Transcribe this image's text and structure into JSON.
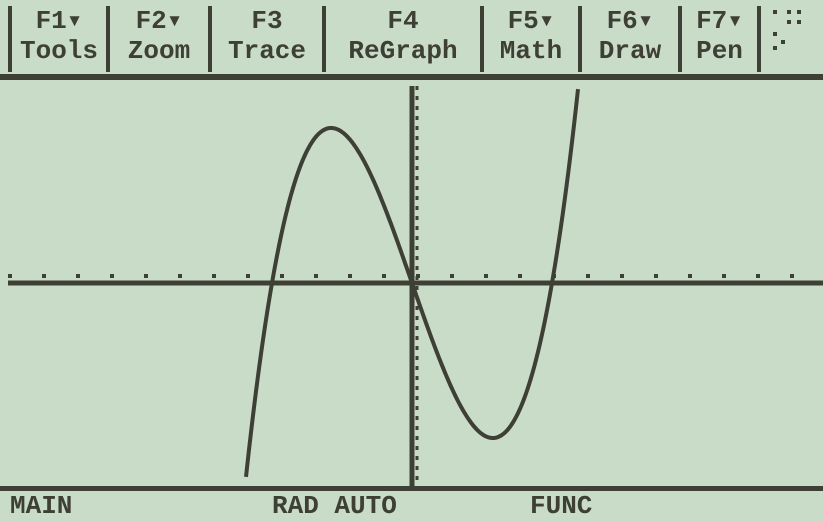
{
  "toolbar": {
    "tabs": [
      {
        "key": "F1▾",
        "label": "Tools"
      },
      {
        "key": "F2▾",
        "label": "Zoom"
      },
      {
        "key": "F3",
        "label": "Trace"
      },
      {
        "key": "F4",
        "label": "ReGraph"
      },
      {
        "key": "F5▾",
        "label": "Math"
      },
      {
        "key": "F6▾",
        "label": "Draw"
      },
      {
        "key": "F7▾",
        "label": "Pen"
      }
    ]
  },
  "status": {
    "mode": "MAIN",
    "angle_auto": "RAD AUTO",
    "graph": "FUNC"
  }
}
